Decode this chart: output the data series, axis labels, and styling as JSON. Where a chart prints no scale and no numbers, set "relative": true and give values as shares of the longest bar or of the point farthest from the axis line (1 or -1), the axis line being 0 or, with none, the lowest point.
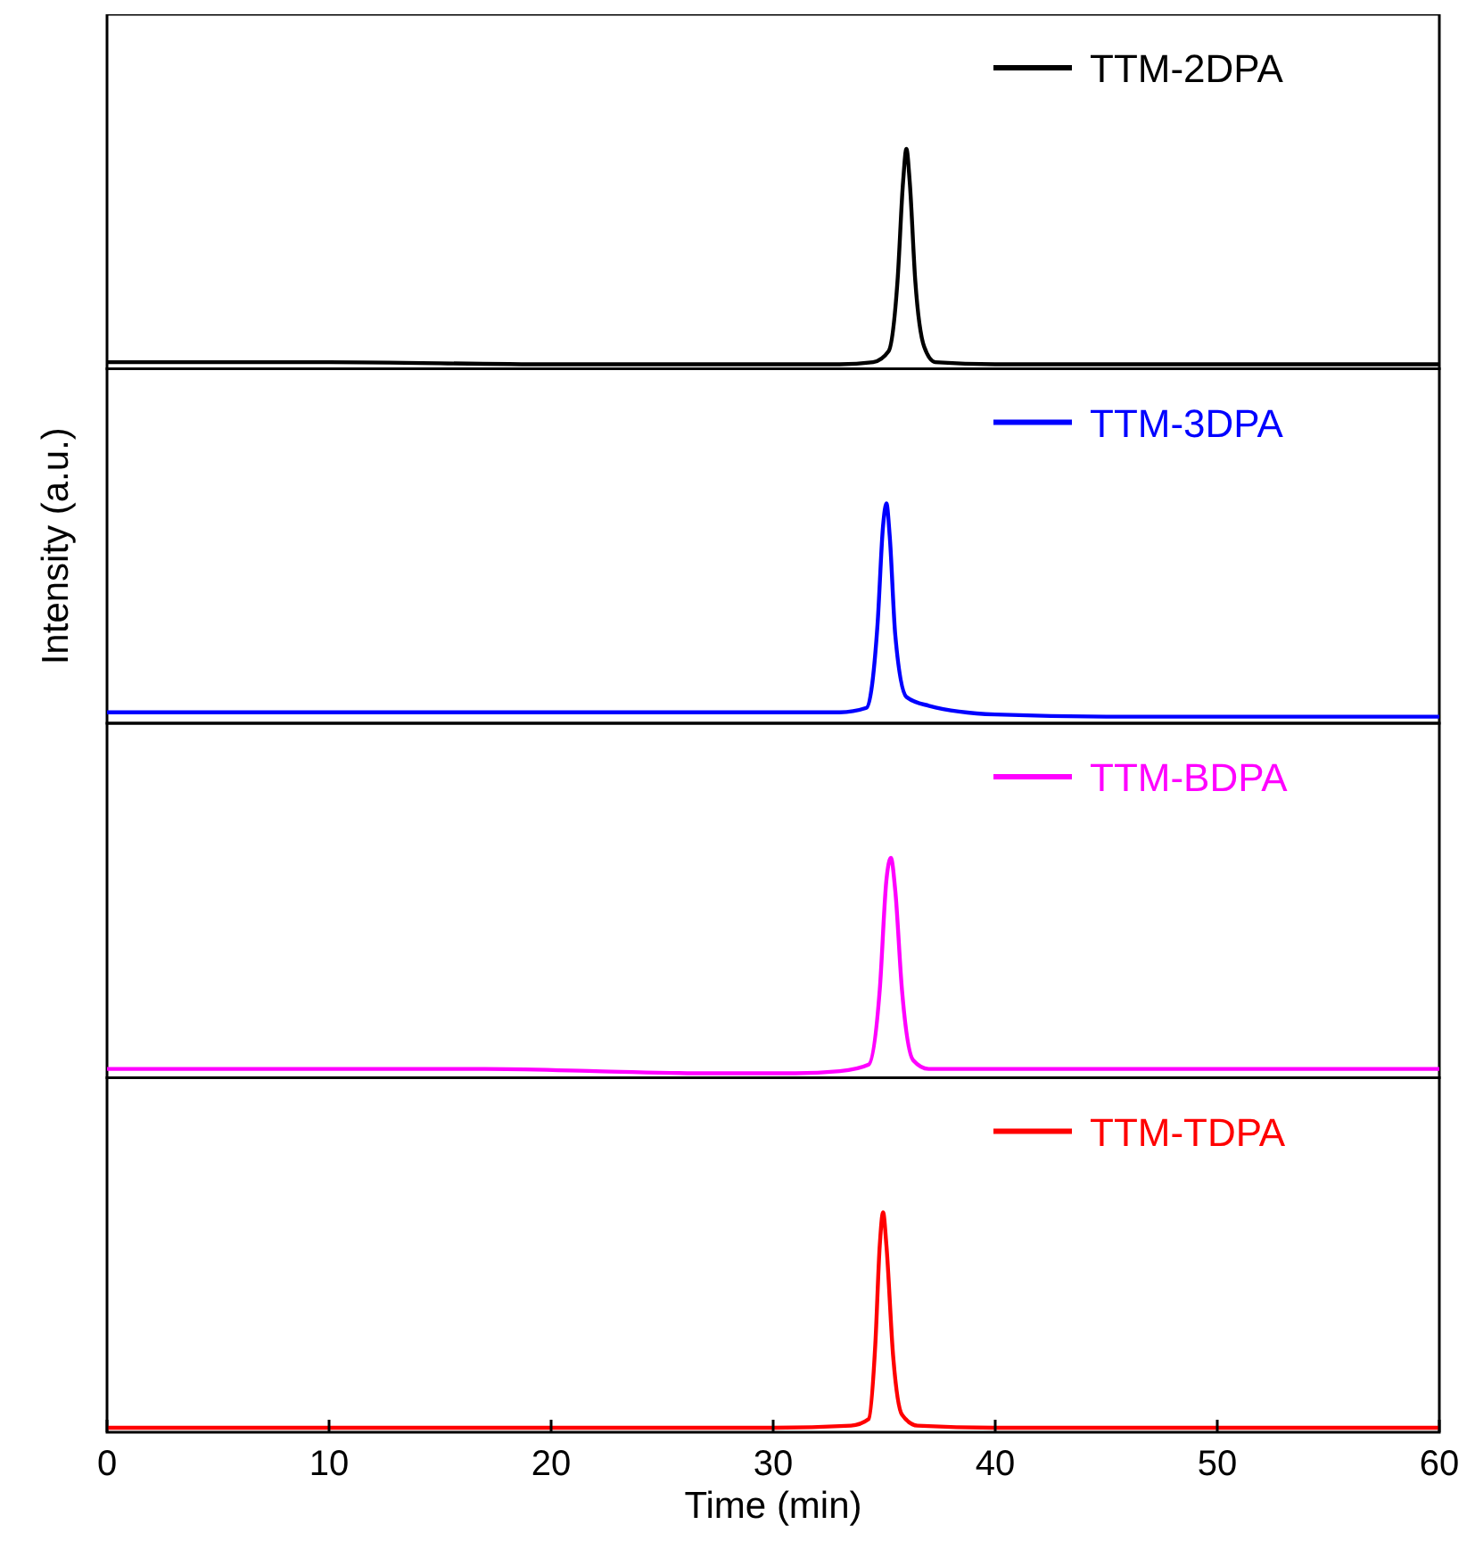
{
  "chart_data": [
    {
      "type": "line",
      "relative": true,
      "xlim": [
        0,
        60
      ],
      "tick_labels": false,
      "legend": "top right",
      "series": [
        {
          "name": "TTM-2DPA",
          "color": "#000000",
          "x": [
            0,
            10,
            20,
            28,
            33,
            34.5,
            35.2,
            35.6,
            35.85,
            36,
            36.15,
            36.4,
            36.8,
            37.3,
            40,
            50,
            60
          ],
          "values": [
            0.03,
            0.03,
            0.02,
            0.02,
            0.02,
            0.03,
            0.08,
            0.4,
            0.85,
            1,
            0.85,
            0.4,
            0.1,
            0.03,
            0.02,
            0.02,
            0.02
          ]
        }
      ]
    },
    {
      "type": "line",
      "relative": true,
      "xlim": [
        0,
        60
      ],
      "tick_labels": false,
      "legend": "top right",
      "ylabel": "Intensity (a.u.)",
      "series": [
        {
          "name": "TTM-3DPA",
          "color": "#0000ff",
          "x": [
            0,
            10,
            20,
            30,
            33,
            34.2,
            34.7,
            34.95,
            35.1,
            35.25,
            35.5,
            36,
            37,
            40,
            45,
            60
          ],
          "values": [
            0.05,
            0.05,
            0.05,
            0.05,
            0.05,
            0.07,
            0.45,
            0.9,
            1,
            0.85,
            0.4,
            0.12,
            0.08,
            0.04,
            0.03,
            0.03
          ]
        }
      ]
    },
    {
      "type": "line",
      "relative": true,
      "xlim": [
        0,
        60
      ],
      "tick_labels": false,
      "legend": "top right",
      "series": [
        {
          "name": "TTM-BDPA",
          "color": "#ff00ff",
          "x": [
            0,
            10,
            17,
            22,
            27,
            31,
            33,
            34.3,
            34.8,
            35.1,
            35.3,
            35.5,
            35.8,
            36.3,
            37,
            45,
            60
          ],
          "values": [
            0.04,
            0.04,
            0.04,
            0.03,
            0.02,
            0.02,
            0.03,
            0.06,
            0.4,
            0.9,
            1,
            0.85,
            0.4,
            0.08,
            0.04,
            0.04,
            0.04
          ]
        }
      ]
    },
    {
      "type": "line",
      "relative": true,
      "xlim": [
        0,
        60
      ],
      "xticks": [
        0,
        10,
        20,
        30,
        40,
        50,
        60
      ],
      "xlabel": "Time (min)",
      "tick_labels": "x",
      "legend": "top right",
      "series": [
        {
          "name": "TTM-TDPA",
          "color": "#ff0000",
          "x": [
            0,
            10,
            20,
            30,
            33.5,
            34.3,
            34.6,
            34.8,
            34.95,
            35.1,
            35.4,
            35.8,
            36.5,
            40,
            60
          ],
          "values": [
            0.02,
            0.02,
            0.02,
            0.02,
            0.03,
            0.06,
            0.4,
            0.85,
            1,
            0.85,
            0.35,
            0.08,
            0.03,
            0.02,
            0.02
          ]
        }
      ]
    }
  ]
}
